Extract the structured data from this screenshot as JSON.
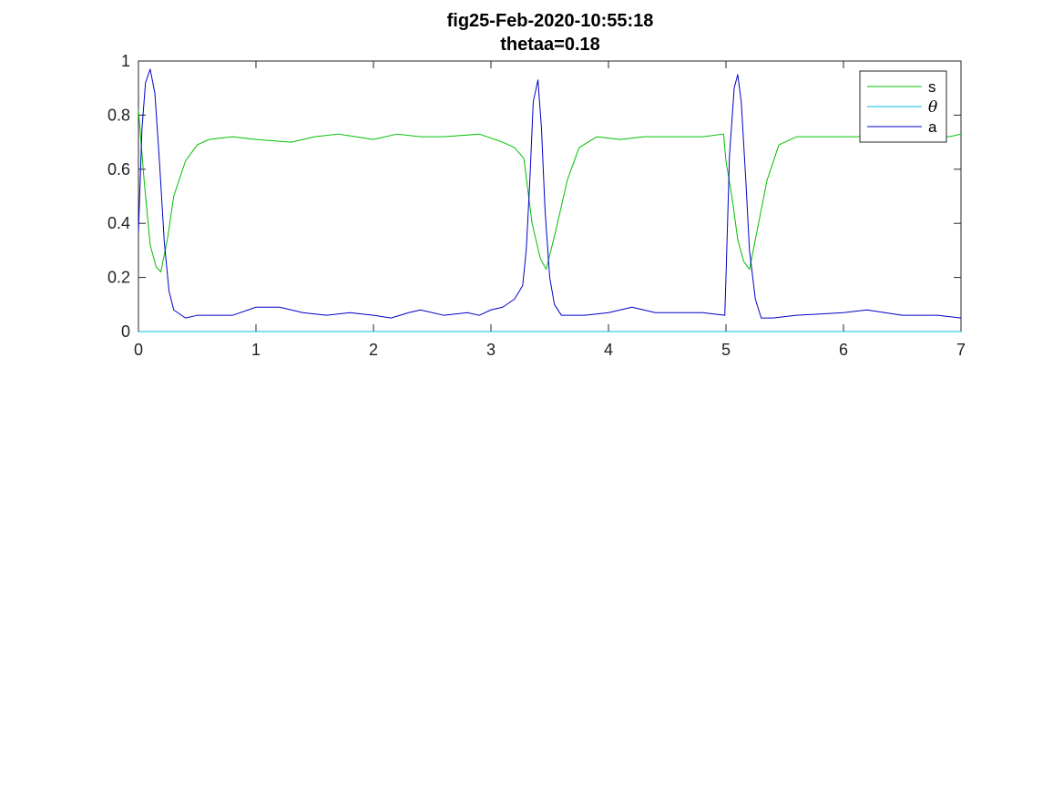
{
  "figure": {
    "title_line1": "fig25-Feb-2020-10:55:18",
    "title_line2": "thetaa=0.18"
  },
  "chart_data": {
    "type": "line",
    "title": "fig25-Feb-2020-10:55:18 thetaa=0.18",
    "xlabel": "",
    "ylabel": "",
    "xlim": [
      0,
      7
    ],
    "ylim": [
      0,
      1
    ],
    "xticks": [
      0,
      1,
      2,
      3,
      4,
      5,
      6,
      7
    ],
    "yticks": [
      0,
      0.2,
      0.4,
      0.6,
      0.8,
      1
    ],
    "grid": false,
    "legend_placement": "top-right",
    "series": [
      {
        "name": "s",
        "color": "#00c000",
        "x": [
          0,
          0.05,
          0.1,
          0.15,
          0.19,
          0.25,
          0.3,
          0.4,
          0.5,
          0.6,
          0.8,
          1.0,
          1.3,
          1.5,
          1.7,
          2.0,
          2.2,
          2.4,
          2.6,
          2.9,
          3.1,
          3.2,
          3.28,
          3.35,
          3.42,
          3.47,
          3.55,
          3.65,
          3.75,
          3.9,
          4.1,
          4.3,
          4.6,
          4.8,
          4.98,
          5.0,
          5.05,
          5.1,
          5.15,
          5.2,
          5.25,
          5.35,
          5.45,
          5.6,
          5.8,
          6.0,
          6.3,
          6.6,
          6.9,
          7.0
        ],
        "y": [
          0.82,
          0.55,
          0.32,
          0.24,
          0.22,
          0.35,
          0.5,
          0.63,
          0.69,
          0.71,
          0.72,
          0.71,
          0.7,
          0.72,
          0.73,
          0.71,
          0.73,
          0.72,
          0.72,
          0.73,
          0.7,
          0.68,
          0.64,
          0.4,
          0.27,
          0.23,
          0.37,
          0.56,
          0.68,
          0.72,
          0.71,
          0.72,
          0.72,
          0.72,
          0.73,
          0.63,
          0.5,
          0.34,
          0.26,
          0.23,
          0.34,
          0.56,
          0.69,
          0.72,
          0.72,
          0.72,
          0.72,
          0.72,
          0.72,
          0.73
        ]
      },
      {
        "name": "θ",
        "color": "#00c0e0",
        "x": [
          0,
          7
        ],
        "y": [
          0,
          0
        ]
      },
      {
        "name": "a",
        "color": "#0000c8",
        "x": [
          0,
          0.03,
          0.06,
          0.1,
          0.14,
          0.18,
          0.22,
          0.26,
          0.3,
          0.4,
          0.5,
          0.6,
          0.8,
          1.0,
          1.2,
          1.4,
          1.6,
          1.8,
          2.0,
          2.15,
          2.3,
          2.4,
          2.6,
          2.8,
          2.9,
          3.0,
          3.1,
          3.2,
          3.27,
          3.3,
          3.33,
          3.36,
          3.4,
          3.43,
          3.46,
          3.5,
          3.54,
          3.6,
          3.7,
          3.8,
          4.0,
          4.2,
          4.4,
          4.6,
          4.8,
          4.99,
          5.0,
          5.03,
          5.07,
          5.1,
          5.13,
          5.17,
          5.2,
          5.25,
          5.3,
          5.4,
          5.6,
          6.0,
          6.2,
          6.5,
          6.8,
          7.0
        ],
        "y": [
          0.37,
          0.75,
          0.92,
          0.97,
          0.88,
          0.62,
          0.33,
          0.15,
          0.08,
          0.05,
          0.06,
          0.06,
          0.06,
          0.09,
          0.09,
          0.07,
          0.06,
          0.07,
          0.06,
          0.05,
          0.07,
          0.08,
          0.06,
          0.07,
          0.06,
          0.08,
          0.09,
          0.12,
          0.17,
          0.3,
          0.55,
          0.85,
          0.93,
          0.75,
          0.45,
          0.2,
          0.1,
          0.06,
          0.06,
          0.06,
          0.07,
          0.09,
          0.07,
          0.07,
          0.07,
          0.06,
          0.2,
          0.65,
          0.9,
          0.95,
          0.85,
          0.55,
          0.3,
          0.12,
          0.05,
          0.05,
          0.06,
          0.07,
          0.08,
          0.06,
          0.06,
          0.05
        ]
      }
    ]
  }
}
